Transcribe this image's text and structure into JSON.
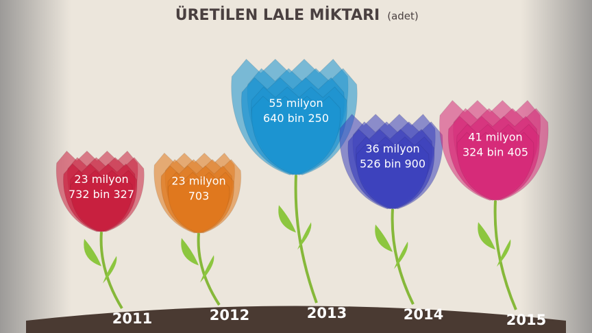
{
  "chart_data": {
    "type": "bar",
    "title": "ÜRETİLEN LALE MİKTARI",
    "subtitle": "(adet)",
    "categories": [
      "2011",
      "2012",
      "2013",
      "2014",
      "2015"
    ],
    "values": [
      23732327,
      23000703,
      55640250,
      36526900,
      41324405
    ],
    "value_labels": [
      [
        "23 milyon",
        "732 bin 327"
      ],
      [
        "23 milyon",
        "703"
      ],
      [
        "55 milyon",
        "640 bin 250"
      ],
      [
        "36 milyon",
        "526 bin 900"
      ],
      [
        "41 milyon",
        "324 bin 405"
      ]
    ],
    "colors": [
      "#c8203f",
      "#e0781e",
      "#1c93d0",
      "#3d42bc",
      "#d62b79"
    ]
  }
}
